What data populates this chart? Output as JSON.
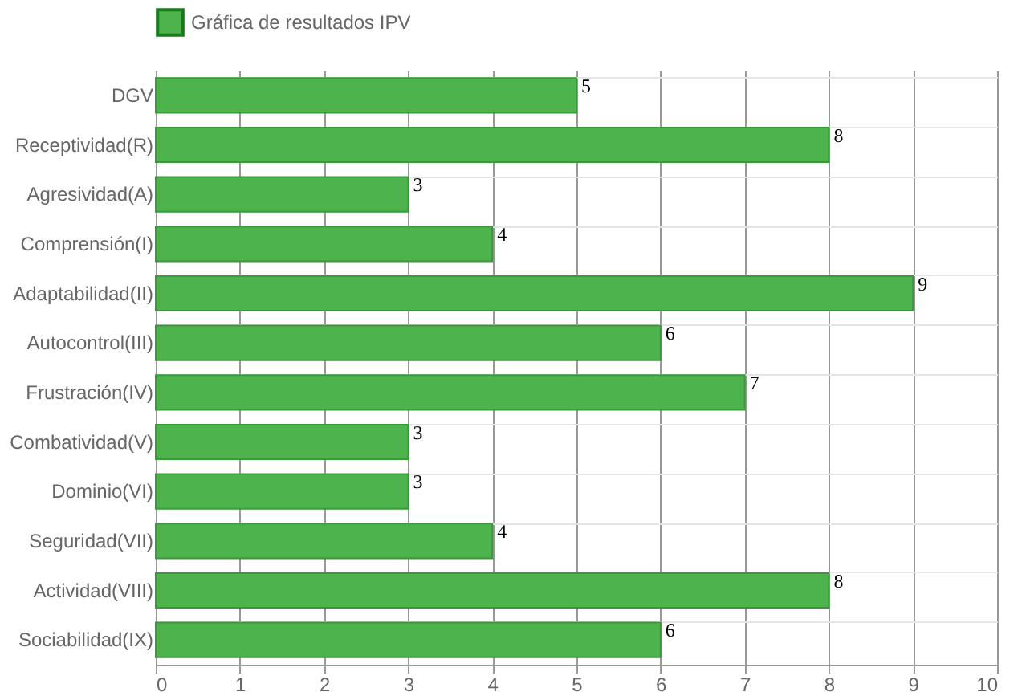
{
  "chart_data": {
    "type": "bar",
    "orientation": "horizontal",
    "categories": [
      "DGV",
      "Receptividad(R)",
      "Agresividad(A)",
      "Comprensión(I)",
      "Adaptabilidad(II)",
      "Autocontrol(III)",
      "Frustración(IV)",
      "Combatividad(V)",
      "Dominio(VI)",
      "Seguridad(VII)",
      "Actividad(VIII)",
      "Sociabilidad(IX)"
    ],
    "series": [
      {
        "name": "Gráfica de resultados IPV",
        "color": "#4db34d",
        "values": [
          5,
          8,
          3,
          4,
          9,
          6,
          7,
          3,
          3,
          4,
          8,
          6
        ]
      }
    ],
    "xlim": [
      0,
      10
    ],
    "xticks": [
      0,
      1,
      2,
      3,
      4,
      5,
      6,
      7,
      8,
      9,
      10
    ],
    "grid": true,
    "legend": "top",
    "data_labels": true
  }
}
